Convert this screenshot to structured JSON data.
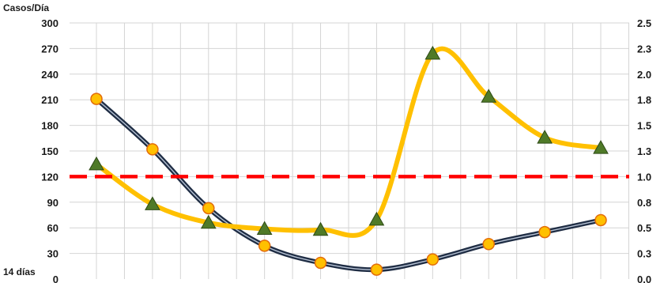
{
  "chart_data": {
    "type": "line",
    "left_axis": {
      "label": "Casos/Día",
      "ticks": [
        "0",
        "30",
        "60",
        "90",
        "120",
        "150",
        "180",
        "210",
        "240",
        "270",
        "300"
      ],
      "range": [
        0,
        300
      ]
    },
    "right_axis": {
      "ticks": [
        "0.0",
        "0.3",
        "0.5",
        "0.8",
        "1.0",
        "1.3",
        "1.5",
        "1.8",
        "2.0",
        "2.3",
        "2.5"
      ],
      "range": [
        0,
        2.5
      ]
    },
    "x_label": "14 días",
    "point_count": 10,
    "grid": true,
    "series": [
      {
        "axis": "left",
        "values": [
          211,
          152,
          83,
          39,
          19,
          11,
          23,
          41,
          55,
          69
        ],
        "color": "#1f2d44",
        "marker": "circle",
        "marker_fill": "#ffc000",
        "marker_stroke": "#e36c09"
      },
      {
        "axis": "right",
        "values": [
          1.12,
          0.73,
          0.55,
          0.49,
          0.48,
          0.58,
          2.2,
          1.78,
          1.38,
          1.28
        ],
        "color": "#ffc000",
        "marker": "triangle",
        "marker_fill": "#4f7a28",
        "marker_stroke": "#2e4a16"
      },
      {
        "axis": "right",
        "values": [
          1.0,
          1.0
        ],
        "color": "#ff0000",
        "style": "dashed"
      }
    ]
  }
}
